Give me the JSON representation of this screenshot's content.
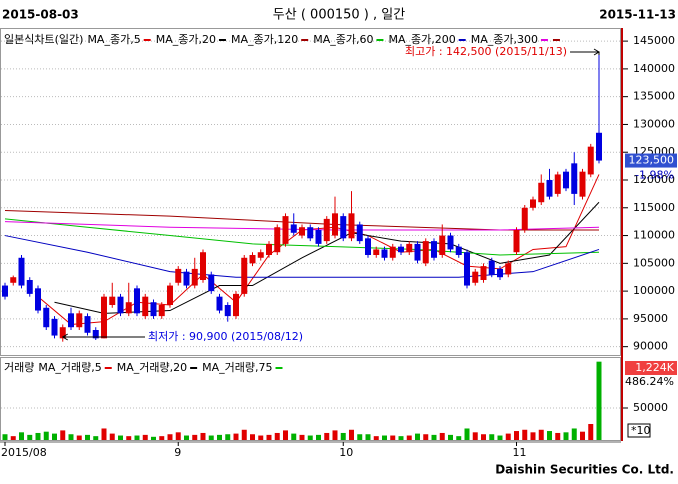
{
  "header": {
    "start": "2015-08-03",
    "title": "두산 ( 000150 ) , 일간",
    "end": "2015-11-13"
  },
  "chart_data": [
    {
      "type": "candlestick",
      "legend_title": "일본식차트(일간)",
      "categories": [
        "2015/08",
        null,
        null,
        null,
        null,
        null,
        null,
        null,
        null,
        null,
        null,
        null,
        null,
        null,
        null,
        null,
        null,
        null,
        null,
        null,
        null,
        "9",
        null,
        null,
        null,
        null,
        null,
        null,
        null,
        null,
        null,
        null,
        null,
        null,
        null,
        null,
        null,
        null,
        null,
        null,
        null,
        "10",
        null,
        null,
        null,
        null,
        null,
        null,
        null,
        null,
        null,
        null,
        null,
        null,
        null,
        null,
        null,
        null,
        null,
        null,
        null,
        null,
        "11",
        null,
        null,
        null,
        null,
        null,
        null,
        null,
        null,
        null,
        null
      ],
      "open": [
        101000,
        101500,
        106000,
        102000,
        100500,
        97000,
        95000,
        91500,
        96000,
        93500,
        95500,
        93000,
        91500,
        97500,
        99000,
        96000,
        100500,
        95500,
        98000,
        95500,
        97500,
        101500,
        103500,
        101000,
        102000,
        103000,
        99000,
        97500,
        95500,
        99500,
        105000,
        106000,
        106500,
        107000,
        108500,
        112000,
        110000,
        111500,
        111000,
        109000,
        110000,
        113500,
        109500,
        112000,
        109500,
        106500,
        107500,
        106000,
        108000,
        107000,
        108500,
        105000,
        109000,
        106500,
        110000,
        108000,
        107000,
        101500,
        102000,
        105500,
        104000,
        103000,
        107000,
        111000,
        115000,
        116000,
        120000,
        117500,
        121500,
        123000,
        117000,
        121000,
        128500
      ],
      "high": [
        101500,
        102800,
        106500,
        102500,
        101000,
        97500,
        95500,
        94000,
        97000,
        96500,
        96000,
        93500,
        99500,
        101500,
        99500,
        101500,
        101000,
        99500,
        98500,
        98000,
        101500,
        104500,
        104000,
        106000,
        107500,
        103500,
        99500,
        98000,
        100000,
        106500,
        107000,
        107500,
        109000,
        112000,
        114000,
        114000,
        112000,
        112000,
        111500,
        113500,
        117000,
        114000,
        118000,
        112500,
        110000,
        108000,
        108000,
        108500,
        108500,
        109000,
        109000,
        109500,
        109500,
        112000,
        110500,
        108500,
        107500,
        104000,
        105000,
        106000,
        104500,
        105500,
        111500,
        115500,
        117000,
        121000,
        122000,
        121500,
        122000,
        125000,
        122000,
        126500,
        142500
      ],
      "low": [
        98500,
        101000,
        100500,
        99000,
        96000,
        93000,
        91500,
        90900,
        93000,
        93000,
        92000,
        91200,
        91500,
        97000,
        95500,
        95500,
        95500,
        95000,
        95000,
        95000,
        97000,
        101000,
        100500,
        100500,
        101500,
        99500,
        96000,
        94500,
        95000,
        99000,
        104500,
        105500,
        106000,
        106500,
        108000,
        110000,
        109500,
        109000,
        108000,
        108500,
        109500,
        109000,
        109000,
        108500,
        106000,
        106000,
        105500,
        105500,
        106500,
        106500,
        105000,
        104500,
        105500,
        106000,
        107000,
        106000,
        100500,
        101000,
        101500,
        102500,
        102000,
        102500,
        106500,
        110500,
        114500,
        115500,
        116500,
        117000,
        118000,
        115500,
        116500,
        120500,
        123000
      ],
      "close": [
        99000,
        102500,
        101000,
        99500,
        96500,
        93500,
        92000,
        93500,
        93500,
        96000,
        92500,
        91500,
        99000,
        99000,
        96000,
        98000,
        96000,
        99000,
        95500,
        97500,
        101000,
        104000,
        101000,
        104000,
        107000,
        100000,
        96500,
        95500,
        99500,
        106000,
        106500,
        107000,
        108500,
        111500,
        113500,
        110500,
        111500,
        109500,
        108500,
        113000,
        114000,
        109500,
        114000,
        109000,
        106500,
        107500,
        106000,
        108000,
        107000,
        108500,
        105500,
        109000,
        106000,
        110000,
        107500,
        106500,
        101000,
        103500,
        104500,
        103000,
        102500,
        105000,
        111000,
        115000,
        116500,
        119500,
        117000,
        121000,
        118500,
        117500,
        121500,
        126000,
        123500
      ],
      "up_color": "#e00000",
      "down_color": "#0000e0",
      "ylim": [
        88500,
        147000
      ],
      "yticks": [
        90000,
        95000,
        100000,
        105000,
        110000,
        115000,
        120000,
        125000,
        130000,
        135000,
        140000,
        145000
      ],
      "grid": true,
      "moving_averages": [
        {
          "name": "MA_종가,5",
          "color": "#e00000",
          "x": [
            4,
            8,
            12,
            16,
            20,
            24,
            28,
            32,
            36,
            40,
            44,
            48,
            52,
            56,
            60,
            64,
            68,
            72
          ],
          "values": [
            99000,
            94000,
            94500,
            98000,
            97500,
            103000,
            98000,
            106500,
            111000,
            111500,
            110000,
            107000,
            107500,
            104500,
            104000,
            107500,
            108000,
            121000
          ]
        },
        {
          "name": "MA_종가,20",
          "color": "#000000",
          "x": [
            6,
            12,
            20,
            26,
            30,
            36,
            42,
            48,
            54,
            60,
            66,
            72
          ],
          "values": [
            98000,
            96000,
            96500,
            101000,
            101000,
            106000,
            110500,
            109000,
            108500,
            105000,
            106500,
            116000
          ]
        },
        {
          "name": "MA_종가,120",
          "color": "#a00000",
          "x": [
            0,
            20,
            40,
            60,
            72
          ],
          "values": [
            114500,
            113500,
            112000,
            111000,
            111000
          ]
        },
        {
          "name": "MA_종가,60",
          "color": "#00c000",
          "x": [
            0,
            10,
            20,
            30,
            40,
            50,
            60,
            72
          ],
          "values": [
            113000,
            111500,
            110000,
            108500,
            108000,
            107500,
            106500,
            107000
          ]
        },
        {
          "name": "MA_종가,200",
          "color": "#0000c0",
          "x": [
            0,
            10,
            20,
            28,
            40,
            55,
            64,
            72
          ],
          "values": [
            110000,
            107000,
            103500,
            102500,
            102500,
            102500,
            103500,
            107500
          ]
        },
        {
          "name": "MA_종가,300",
          "color": "#e000e0",
          "x": [
            0,
            20,
            40,
            60,
            72
          ],
          "values": [
            112500,
            111500,
            111000,
            111000,
            111500
          ]
        }
      ],
      "annotations": [
        {
          "text": "최고가 : 142,500 (2015/11/13)",
          "color": "#e00000"
        },
        {
          "text": "최저가 : 90,900 (2015/08/12)",
          "color": "#0000e0"
        }
      ],
      "last_price": "123,500",
      "change": "-1.98%"
    },
    {
      "type": "bar",
      "legend_title": "거래량",
      "values": [
        90000,
        60000,
        120000,
        80000,
        110000,
        130000,
        100000,
        150000,
        90000,
        70000,
        80000,
        60000,
        180000,
        100000,
        70000,
        60000,
        70000,
        80000,
        50000,
        60000,
        90000,
        120000,
        70000,
        80000,
        110000,
        70000,
        80000,
        90000,
        100000,
        160000,
        90000,
        70000,
        80000,
        110000,
        150000,
        100000,
        80000,
        70000,
        80000,
        110000,
        150000,
        110000,
        160000,
        90000,
        90000,
        60000,
        70000,
        70000,
        60000,
        70000,
        100000,
        90000,
        80000,
        110000,
        80000,
        60000,
        180000,
        120000,
        90000,
        90000,
        70000,
        100000,
        140000,
        160000,
        120000,
        160000,
        140000,
        110000,
        120000,
        180000,
        130000,
        250000,
        1224000
      ],
      "up_color": "#e00000",
      "down_color": "#00b000",
      "ylim": [
        0,
        1250000
      ],
      "yticks": [
        {
          "value": 500000,
          "label": "50000"
        }
      ],
      "multiplier_label": "*10",
      "last_volume": "1,224K",
      "volume_ratio": "486.24%",
      "moving_averages": [
        {
          "name": "MA_거래량,5",
          "color": "#e00000"
        },
        {
          "name": "MA_거래량,20",
          "color": "#000000"
        },
        {
          "name": "MA_거래량,75",
          "color": "#00c000"
        }
      ]
    }
  ],
  "footer": "Daishin Securities Co. Ltd."
}
